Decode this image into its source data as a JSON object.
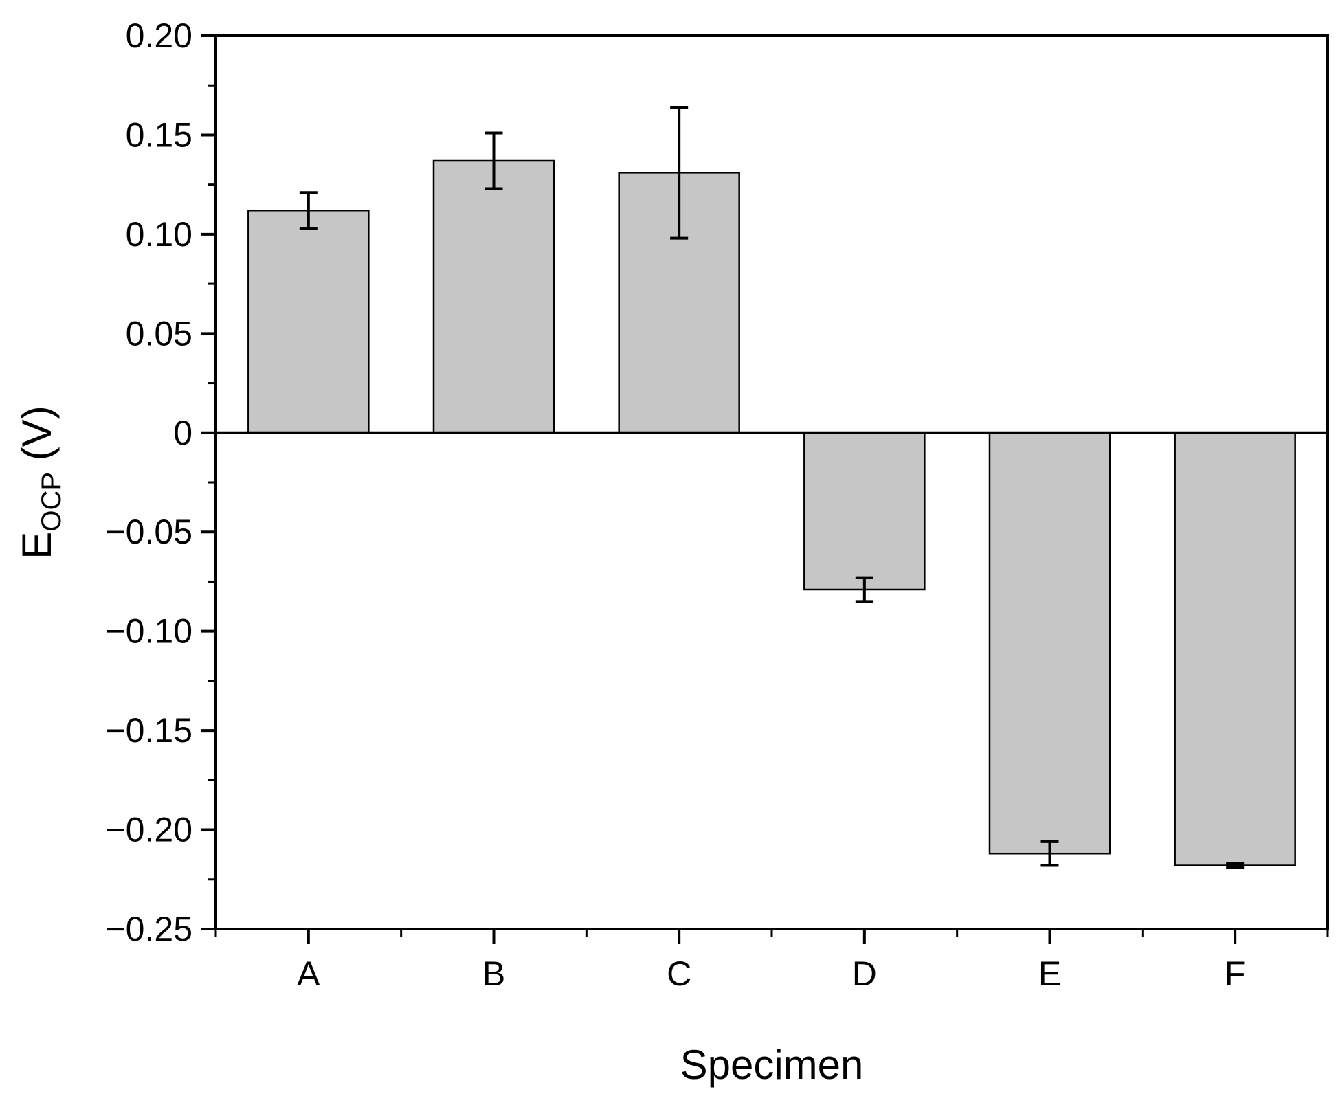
{
  "chart_data": {
    "type": "bar",
    "title": "",
    "xlabel": "Specimen",
    "ylabel": {
      "main": "E",
      "subscript": "OCP",
      "unit": " (V)"
    },
    "categories": [
      "A",
      "B",
      "C",
      "D",
      "E",
      "F"
    ],
    "values": [
      0.112,
      0.137,
      0.131,
      -0.079,
      -0.212,
      -0.218
    ],
    "errors": [
      0.009,
      0.014,
      0.033,
      0.006,
      0.006,
      0.001
    ],
    "ylim": [
      -0.25,
      0.2
    ],
    "yticks": [
      0.2,
      0.15,
      0.1,
      0.05,
      0,
      -0.05,
      -0.1,
      -0.15,
      -0.2,
      -0.25
    ],
    "ytick_labels": [
      "0.20",
      "0.15",
      "0.10",
      "0.05",
      "0",
      "−0.05",
      "−0.10",
      "−0.15",
      "−0.20",
      "−0.25"
    ],
    "bar_fill": "#c6c6c6",
    "bar_stroke": "#000000",
    "grid": false,
    "zero_line": true
  }
}
